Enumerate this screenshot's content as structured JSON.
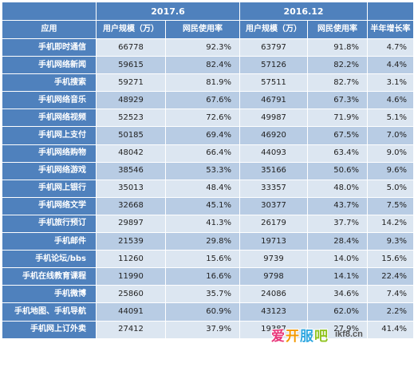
{
  "header": {
    "periods": [
      "2017.6",
      "2016.12"
    ],
    "columns": [
      "应用",
      "用户规模（万）",
      "网民使用率",
      "用户规模（万）",
      "网民使用率",
      "半年增长率"
    ]
  },
  "rows": [
    {
      "app": "手机即时通信",
      "users_2017": "66778",
      "rate_2017": "92.3%",
      "users_2016": "63797",
      "rate_2016": "91.8%",
      "growth": "4.7%"
    },
    {
      "app": "手机网络新闻",
      "users_2017": "59615",
      "rate_2017": "82.4%",
      "users_2016": "57126",
      "rate_2016": "82.2%",
      "growth": "4.4%"
    },
    {
      "app": "手机搜索",
      "users_2017": "59271",
      "rate_2017": "81.9%",
      "users_2016": "57511",
      "rate_2016": "82.7%",
      "growth": "3.1%"
    },
    {
      "app": "手机网络音乐",
      "users_2017": "48929",
      "rate_2017": "67.6%",
      "users_2016": "46791",
      "rate_2016": "67.3%",
      "growth": "4.6%"
    },
    {
      "app": "手机网络视频",
      "users_2017": "52523",
      "rate_2017": "72.6%",
      "users_2016": "49987",
      "rate_2016": "71.9%",
      "growth": "5.1%"
    },
    {
      "app": "手机网上支付",
      "users_2017": "50185",
      "rate_2017": "69.4%",
      "users_2016": "46920",
      "rate_2016": "67.5%",
      "growth": "7.0%"
    },
    {
      "app": "手机网络购物",
      "users_2017": "48042",
      "rate_2017": "66.4%",
      "users_2016": "44093",
      "rate_2016": "63.4%",
      "growth": "9.0%"
    },
    {
      "app": "手机网络游戏",
      "users_2017": "38546",
      "rate_2017": "53.3%",
      "users_2016": "35166",
      "rate_2016": "50.6%",
      "growth": "9.6%"
    },
    {
      "app": "手机网上银行",
      "users_2017": "35013",
      "rate_2017": "48.4%",
      "users_2016": "33357",
      "rate_2016": "48.0%",
      "growth": "5.0%"
    },
    {
      "app": "手机网络文学",
      "users_2017": "32668",
      "rate_2017": "45.1%",
      "users_2016": "30377",
      "rate_2016": "43.7%",
      "growth": "7.5%"
    },
    {
      "app": "手机旅行预订",
      "users_2017": "29897",
      "rate_2017": "41.3%",
      "users_2016": "26179",
      "rate_2016": "37.7%",
      "growth": "14.2%"
    },
    {
      "app": "手机邮件",
      "users_2017": "21539",
      "rate_2017": "29.8%",
      "users_2016": "19713",
      "rate_2016": "28.4%",
      "growth": "9.3%"
    },
    {
      "app": "手机论坛/bbs",
      "users_2017": "11260",
      "rate_2017": "15.6%",
      "users_2016": "9739",
      "rate_2016": "14.0%",
      "growth": "15.6%"
    },
    {
      "app": "手机在线教育课程",
      "users_2017": "11990",
      "rate_2017": "16.6%",
      "users_2016": "9798",
      "rate_2016": "14.1%",
      "growth": "22.4%"
    },
    {
      "app": "手机微博",
      "users_2017": "25860",
      "rate_2017": "35.7%",
      "users_2016": "24086",
      "rate_2016": "34.6%",
      "growth": "7.4%"
    },
    {
      "app": "手机地图、手机导航",
      "users_2017": "44091",
      "rate_2017": "60.9%",
      "users_2016": "43123",
      "rate_2016": "62.0%",
      "growth": "2.2%"
    },
    {
      "app": "手机网上订外卖",
      "users_2017": "27412",
      "rate_2017": "37.9%",
      "users_2016": "19387",
      "rate_2016": "27.9%",
      "growth": "41.4%"
    }
  ],
  "watermark": {
    "logo": [
      "爱",
      "开",
      "服",
      "吧"
    ],
    "url": "ikf8.cn"
  },
  "colors": {
    "header_bg": "#4f81bd",
    "row_light": "#dce6f1",
    "row_dark": "#b8cce4"
  }
}
